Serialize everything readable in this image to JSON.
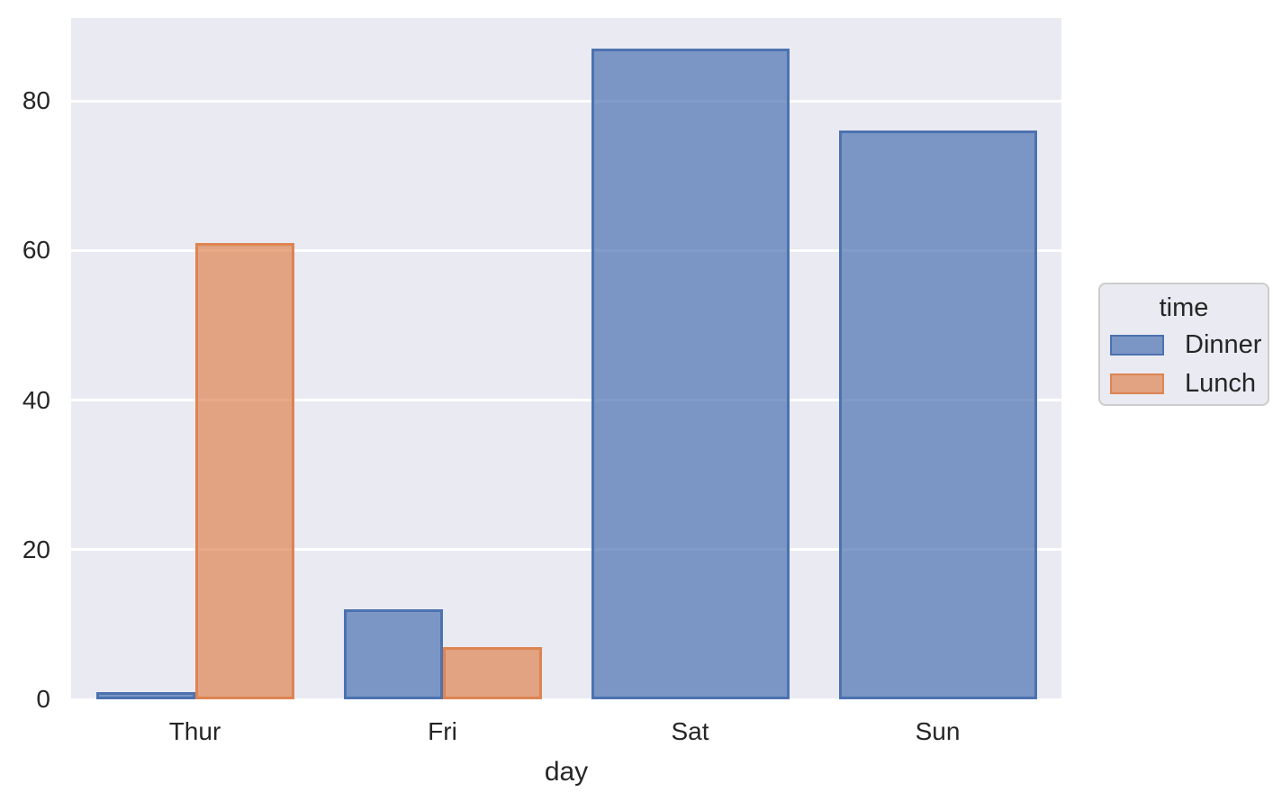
{
  "chart_data": {
    "type": "bar",
    "title": "",
    "xlabel": "day",
    "ylabel": "",
    "categories": [
      "Thur",
      "Fri",
      "Sat",
      "Sun"
    ],
    "series": [
      {
        "name": "Dinner",
        "values": [
          1,
          12,
          87,
          76
        ]
      },
      {
        "name": "Lunch",
        "values": [
          61,
          7,
          null,
          null
        ]
      }
    ],
    "ylim": [
      0,
      91.1
    ],
    "yticks": [
      0,
      20,
      40,
      60,
      80
    ],
    "grid": true,
    "group_width": 0.8,
    "legend": {
      "title": "time",
      "position": "right-outside",
      "entries": [
        "Dinner",
        "Lunch"
      ]
    },
    "colors": {
      "series_fill": [
        "rgba(76,114,176,0.7)",
        "rgba(221,132,82,0.7)"
      ],
      "series_edge": [
        "#4c72b0",
        "#dd8452"
      ],
      "series_hex": [
        "#4c72b0",
        "#dd8452"
      ],
      "axes_background": "#eaeaf2",
      "gridline": "#ffffff",
      "text": "#262626",
      "legend_border": "#cccccc",
      "figure_background": "#ffffff"
    }
  }
}
